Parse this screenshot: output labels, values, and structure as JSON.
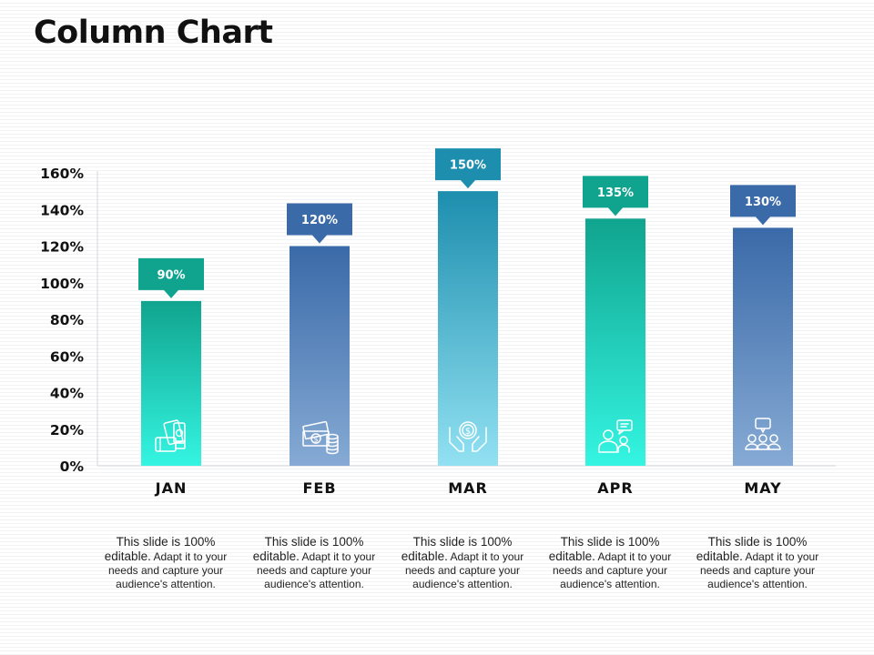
{
  "slide": {
    "title": "Column Chart"
  },
  "chart_data": {
    "type": "bar",
    "title": "",
    "xlabel": "",
    "ylabel": "",
    "categories": [
      "JAN",
      "FEB",
      "MAR",
      "APR",
      "MAY"
    ],
    "values": [
      90,
      120,
      150,
      135,
      130
    ],
    "data_labels": [
      "90%",
      "120%",
      "150%",
      "135%",
      "130%"
    ],
    "ylim": [
      0,
      160
    ],
    "yticks": [
      0,
      20,
      40,
      60,
      80,
      100,
      120,
      140,
      160
    ],
    "ytick_labels": [
      "0%",
      "20%",
      "40%",
      "60%",
      "80%",
      "100%",
      "120%",
      "140%",
      "160%"
    ],
    "grid": false,
    "legend": "none",
    "icons": [
      "money-wallet-icon",
      "cash-coins-icon",
      "hands-dollar-icon",
      "chat-person-icon",
      "team-chat-icon"
    ],
    "colors": {
      "teal_top": "#10a48e",
      "teal_bottom": "#34f5e2",
      "blue_top": "#3a6aa8",
      "blue_bottom": "#86aad4",
      "cyan_top": "#1d8eae",
      "cyan_bottom": "#92e1f2"
    },
    "bar_styles": [
      "teal",
      "blue",
      "cyan",
      "teal",
      "blue"
    ]
  },
  "descriptions": [
    {
      "lead": "This slide is 100% editable.",
      "rest": "Adapt it to your needs and capture your audience's attention."
    },
    {
      "lead": "This slide is 100% editable.",
      "rest": "Adapt it to your needs and capture your audience's attention."
    },
    {
      "lead": "This slide is 100% editable.",
      "rest": "Adapt it to your needs and capture your audience's attention."
    },
    {
      "lead": "This slide is 100% editable.",
      "rest": "Adapt it to your needs and capture your audience's attention."
    },
    {
      "lead": "This slide is 100% editable.",
      "rest": "Adapt it to your needs and capture your audience's attention."
    }
  ]
}
